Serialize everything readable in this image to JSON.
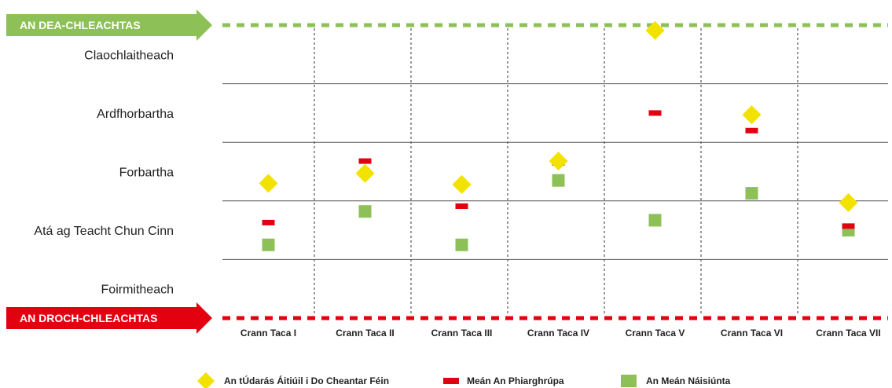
{
  "chart_data": {
    "type": "scatter",
    "top_banner": "AN DEA-CHLEACHTAS",
    "bottom_banner": "AN DROCH-CHLEACHTAS",
    "levels": [
      "Claochlaitheach",
      "Ardfhorbartha",
      "Forbartha",
      "Atá ag Teacht Chun Cinn",
      "Foirmitheach"
    ],
    "categories": [
      "Crann Taca I",
      "Crann Taca II",
      "Crann Taca III",
      "Crann Taca IV",
      "Crann Taca V",
      "Crann Taca VI",
      "Crann Taca VII"
    ],
    "ylim": [
      0,
      5
    ],
    "series": [
      {
        "name": "An tÚdarás Áitiúil i Do Cheantar Féin",
        "marker": "diamond",
        "color": "#f2e200",
        "values": [
          2.3,
          2.47,
          2.28,
          2.68,
          4.91,
          3.47,
          1.97
        ]
      },
      {
        "name": "Meán An Phiarghrúpa",
        "marker": "dash",
        "color": "#e3000f",
        "values": [
          1.63,
          2.68,
          1.91,
          2.65,
          3.5,
          3.2,
          1.57
        ]
      },
      {
        "name": "An Meán Náisiúnta",
        "marker": "square",
        "color": "#8dc056",
        "values": [
          1.25,
          1.82,
          1.25,
          2.35,
          1.67,
          2.13,
          1.5
        ]
      }
    ],
    "colors": {
      "top": "#8dc056",
      "bottom": "#e3000f",
      "grid": "#555555"
    }
  }
}
